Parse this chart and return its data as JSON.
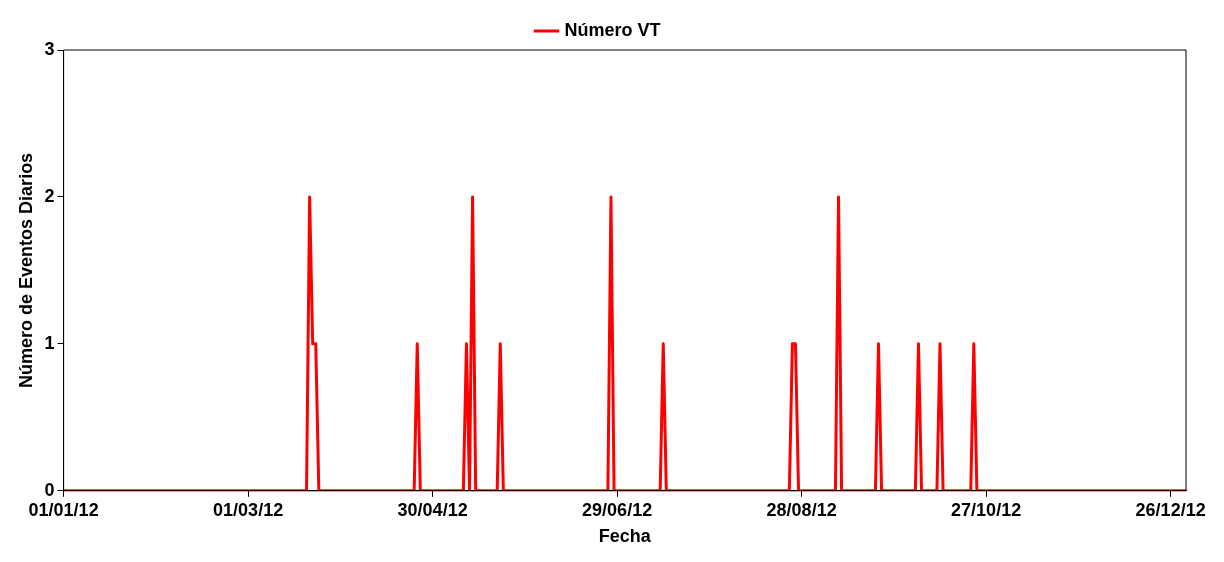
{
  "chart_data": {
    "type": "line",
    "xlabel": "Fecha",
    "ylabel": "Número de Eventos Diarios",
    "series": [
      {
        "name": "Número VT",
        "color": "#ff0000",
        "x": [
          "2012-01-01",
          "2012-03-20",
          "2012-03-21",
          "2012-03-22",
          "2012-03-23",
          "2012-03-24",
          "2012-04-24",
          "2012-04-25",
          "2012-04-26",
          "2012-05-10",
          "2012-05-11",
          "2012-05-12",
          "2012-05-13",
          "2012-05-14",
          "2012-05-21",
          "2012-05-22",
          "2012-05-23",
          "2012-06-26",
          "2012-06-27",
          "2012-06-28",
          "2012-07-13",
          "2012-07-14",
          "2012-07-15",
          "2012-08-24",
          "2012-08-25",
          "2012-08-26",
          "2012-08-27",
          "2012-09-08",
          "2012-09-09",
          "2012-09-10",
          "2012-09-21",
          "2012-09-22",
          "2012-09-23",
          "2012-10-04",
          "2012-10-05",
          "2012-10-06",
          "2012-10-11",
          "2012-10-12",
          "2012-10-13",
          "2012-10-22",
          "2012-10-23",
          "2012-10-24",
          "2012-12-31"
        ],
        "values": [
          0,
          0,
          2,
          1,
          1,
          0,
          0,
          1,
          0,
          0,
          1,
          0,
          2,
          0,
          0,
          1,
          0,
          0,
          2,
          0,
          0,
          1,
          0,
          0,
          1,
          1,
          0,
          0,
          2,
          0,
          0,
          1,
          0,
          0,
          1,
          0,
          0,
          1,
          0,
          0,
          1,
          0,
          0
        ]
      }
    ],
    "xlim": [
      "2012-01-01",
      "2012-12-31"
    ],
    "xticks": [
      {
        "value": "2012-01-01",
        "label": "01/01/12"
      },
      {
        "value": "2012-03-01",
        "label": "01/03/12"
      },
      {
        "value": "2012-04-30",
        "label": "30/04/12"
      },
      {
        "value": "2012-06-29",
        "label": "29/06/12"
      },
      {
        "value": "2012-08-28",
        "label": "28/08/12"
      },
      {
        "value": "2012-10-27",
        "label": "27/10/12"
      },
      {
        "value": "2012-12-26",
        "label": "26/12/12"
      }
    ],
    "ylim": [
      0,
      3
    ],
    "yticks": [
      0,
      1,
      2,
      3
    ],
    "grid": false,
    "legend": "top",
    "marker": "none",
    "line_style": "solid"
  }
}
